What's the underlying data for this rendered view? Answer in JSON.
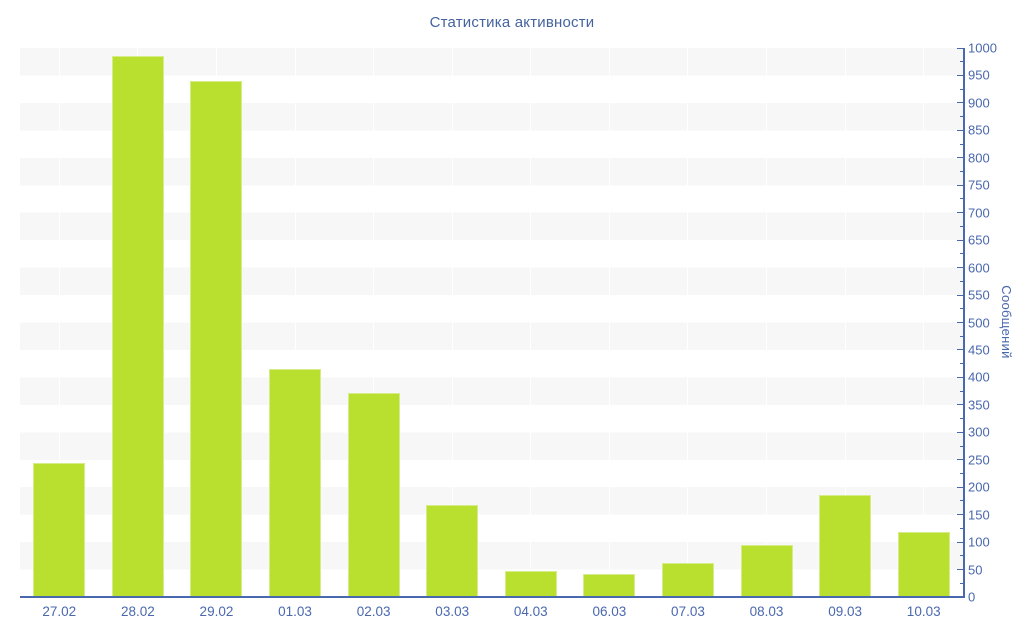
{
  "chart_data": {
    "type": "bar",
    "title": "Статистика активности",
    "categories": [
      "27.02",
      "28.02",
      "29.02",
      "01.03",
      "02.03",
      "03.03",
      "04.03",
      "06.03",
      "07.03",
      "08.03",
      "09.03",
      "10.03"
    ],
    "values": [
      245,
      985,
      940,
      415,
      372,
      168,
      47,
      42,
      62,
      95,
      186,
      118
    ],
    "xlabel": "",
    "ylabel": "Сообщений",
    "ylim": [
      0,
      1000
    ],
    "y_tick_interval": 50,
    "y_minor_tick_interval": 25,
    "legend": "none",
    "grid": "alternating-horizontal-bands-and-vertical-category-lines",
    "colors": {
      "bar_fill": "#b9e02f",
      "bar_border": "#d6ec8a",
      "axis_line": "#4a68ae",
      "tick_label": "#4a68ae",
      "title": "#44639f",
      "band_gray": "#f7f7f7",
      "background": "#ffffff"
    }
  }
}
